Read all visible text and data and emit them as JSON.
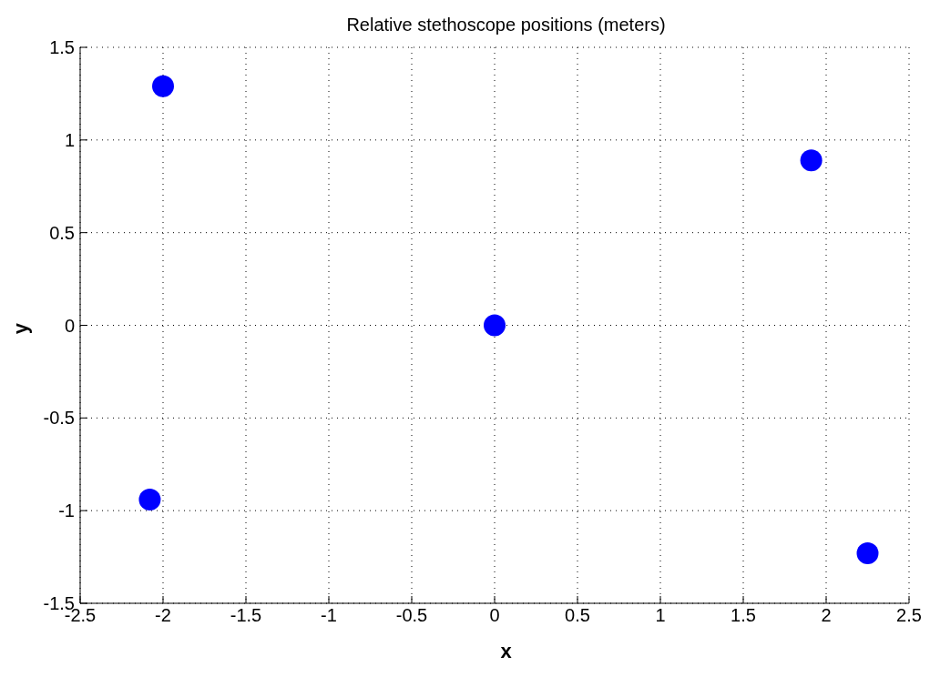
{
  "chart_data": {
    "type": "scatter",
    "title": "Relative stethoscope positions (meters)",
    "xlabel": "x",
    "ylabel": "y",
    "x": [
      -2.0,
      1.91,
      0,
      -2.08,
      2.25
    ],
    "values": [
      1.29,
      0.89,
      0,
      -0.94,
      -1.23
    ],
    "color": "#0000ff",
    "marker": "circle",
    "xlim": [
      -2.5,
      2.5
    ],
    "xticks": [
      -2.5,
      -2,
      -1.5,
      -1,
      -0.5,
      0,
      0.5,
      1,
      1.5,
      2,
      2.5
    ],
    "ylim": [
      -1.5,
      1.5
    ],
    "yticks": [
      -1.5,
      -1,
      -0.5,
      0,
      0.5,
      1,
      1.5
    ],
    "grid": true,
    "legend": false
  }
}
